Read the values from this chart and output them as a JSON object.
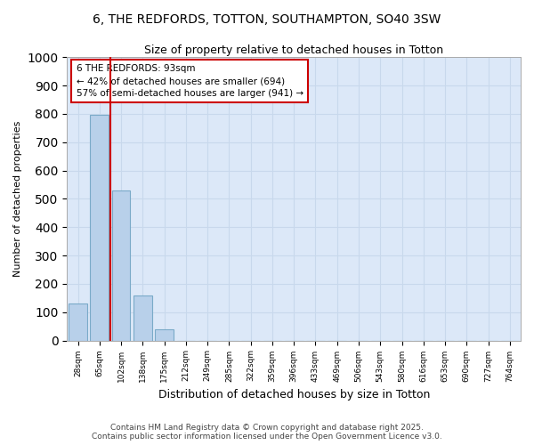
{
  "title_line1": "6, THE REDFORDS, TOTTON, SOUTHAMPTON, SO40 3SW",
  "title_line2": "Size of property relative to detached houses in Totton",
  "xlabel": "Distribution of detached houses by size in Totton",
  "ylabel": "Number of detached properties",
  "categories": [
    "28sqm",
    "65sqm",
    "102sqm",
    "138sqm",
    "175sqm",
    "212sqm",
    "249sqm",
    "285sqm",
    "322sqm",
    "359sqm",
    "396sqm",
    "433sqm",
    "469sqm",
    "506sqm",
    "543sqm",
    "580sqm",
    "616sqm",
    "653sqm",
    "690sqm",
    "727sqm",
    "764sqm"
  ],
  "values": [
    130,
    795,
    530,
    160,
    40,
    0,
    0,
    0,
    0,
    0,
    0,
    0,
    0,
    0,
    0,
    0,
    0,
    0,
    0,
    0,
    0
  ],
  "bar_color": "#b8d0ea",
  "bar_edge_color": "#7aaac8",
  "grid_color": "#c8d8ec",
  "bg_color": "#dce8f8",
  "red_line_x": 1.5,
  "annotation_line1": "6 THE REDFORDS: 93sqm",
  "annotation_line2": "← 42% of detached houses are smaller (694)",
  "annotation_line3": "57% of semi-detached houses are larger (941) →",
  "annotation_box_color": "#cc0000",
  "ylim": [
    0,
    1000
  ],
  "yticks": [
    0,
    100,
    200,
    300,
    400,
    500,
    600,
    700,
    800,
    900,
    1000
  ],
  "footer_line1": "Contains HM Land Registry data © Crown copyright and database right 2025.",
  "footer_line2": "Contains public sector information licensed under the Open Government Licence v3.0."
}
